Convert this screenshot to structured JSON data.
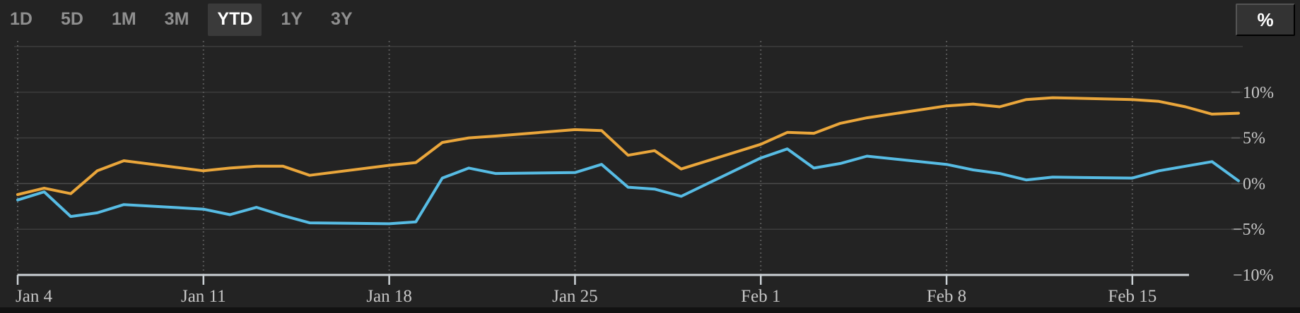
{
  "toolbar": {
    "ranges": [
      "1D",
      "5D",
      "1M",
      "3M",
      "YTD",
      "1Y",
      "3Y"
    ],
    "selected_range": "YTD",
    "unit_toggle_label": "%"
  },
  "colors": {
    "background": "#232323",
    "tab_inactive_text": "#8f8f8f",
    "tab_active_bg": "#3a3a3a",
    "tab_active_text": "#ffffff",
    "gridline": "#3c3c3c",
    "zero_line": "#4c4c4c",
    "dotted_vertical": "#575757",
    "axis_line": "#ccd2d6",
    "tick_label": "#c6c6c6",
    "series_orange": "#eaa63b",
    "series_blue": "#57bce4"
  },
  "chart_data": {
    "type": "line",
    "unit": "%",
    "grid": {
      "horizontal": "solid",
      "vertical": "dotted"
    },
    "legend_position": "none",
    "ylim": [
      -10,
      15
    ],
    "y_ticks": [
      {
        "label": "10%",
        "value": 10
      },
      {
        "label": "5%",
        "value": 5
      },
      {
        "label": "0%",
        "value": 0
      },
      {
        "label": "−5%",
        "value": -5
      },
      {
        "label": "−10%",
        "value": -10
      }
    ],
    "x_tick_labels": [
      "Jan 4",
      "Jan 11",
      "Jan 18",
      "Jan 25",
      "Feb 1",
      "Feb 8",
      "Feb 15"
    ],
    "x_tick_day_offsets": [
      0,
      7,
      14,
      21,
      28,
      35,
      42
    ],
    "x_range_days": [
      0,
      46
    ],
    "x_dates": [
      "Jan 4",
      "Jan 5",
      "Jan 6",
      "Jan 7",
      "Jan 8",
      "Jan 11",
      "Jan 12",
      "Jan 13",
      "Jan 14",
      "Jan 15",
      "Jan 18",
      "Jan 19",
      "Jan 20",
      "Jan 21",
      "Jan 22",
      "Jan 25",
      "Jan 26",
      "Jan 27",
      "Jan 28",
      "Jan 29",
      "Feb 1",
      "Feb 2",
      "Feb 3",
      "Feb 4",
      "Feb 5",
      "Feb 8",
      "Feb 9",
      "Feb 10",
      "Feb 11",
      "Feb 12",
      "Feb 15",
      "Feb 16",
      "Feb 17",
      "Feb 18",
      "Feb 19"
    ],
    "x_day_offsets": [
      0,
      1,
      2,
      3,
      4,
      7,
      8,
      9,
      10,
      11,
      14,
      15,
      16,
      17,
      18,
      21,
      22,
      23,
      24,
      25,
      28,
      29,
      30,
      31,
      32,
      35,
      36,
      37,
      38,
      39,
      42,
      43,
      44,
      45,
      46
    ],
    "series": [
      {
        "name": "orange-series",
        "color": "#eaa63b",
        "values": [
          -1.2,
          -0.5,
          -1.1,
          1.4,
          2.5,
          1.4,
          1.7,
          1.9,
          1.9,
          0.9,
          2.0,
          2.3,
          4.5,
          5.0,
          5.2,
          5.9,
          5.8,
          3.1,
          3.6,
          1.6,
          4.3,
          5.6,
          5.5,
          6.6,
          7.2,
          8.5,
          8.7,
          8.4,
          9.2,
          9.4,
          9.2,
          9.0,
          8.4,
          7.6,
          7.7
        ]
      },
      {
        "name": "blue-series",
        "color": "#57bce4",
        "values": [
          -1.8,
          -0.9,
          -3.6,
          -3.2,
          -2.3,
          -2.8,
          -3.4,
          -2.6,
          -3.5,
          -4.3,
          -4.4,
          -4.2,
          0.6,
          1.7,
          1.1,
          1.2,
          2.1,
          -0.4,
          -0.6,
          -1.4,
          2.8,
          3.8,
          1.7,
          2.2,
          3.0,
          2.1,
          1.5,
          1.1,
          0.4,
          0.7,
          0.6,
          1.4,
          1.9,
          2.4,
          0.3
        ]
      }
    ]
  }
}
